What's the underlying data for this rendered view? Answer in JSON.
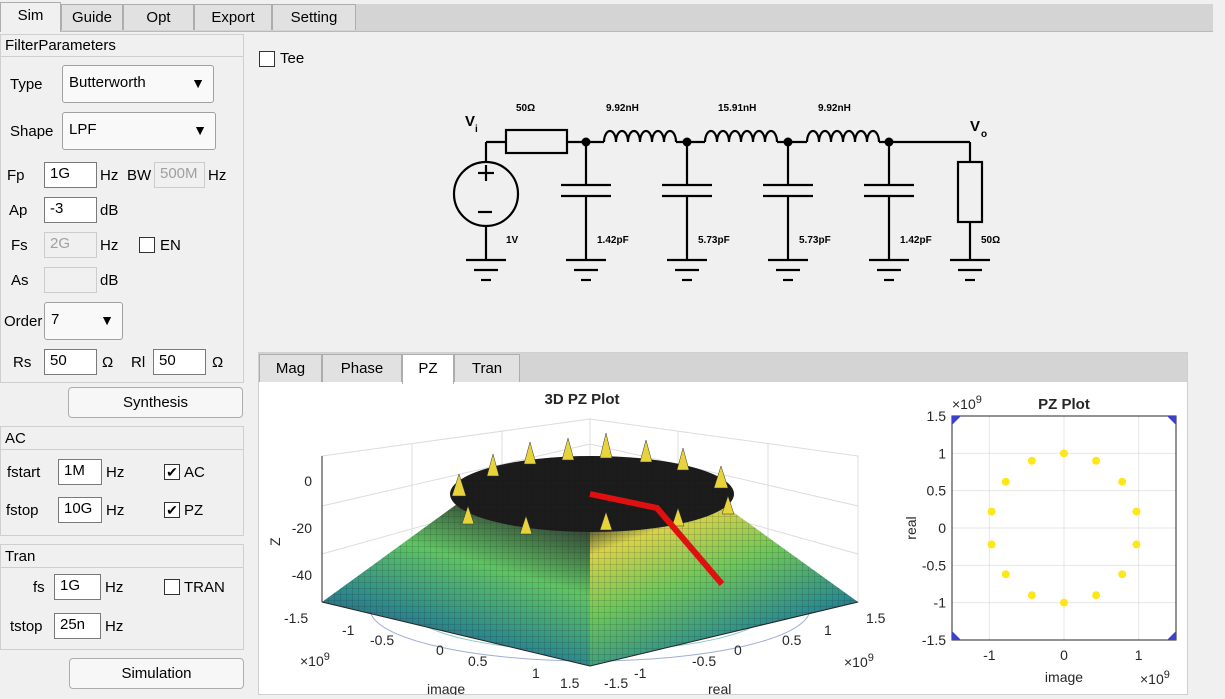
{
  "main_tabs": [
    "Sim",
    "Guide",
    "Opt",
    "Export",
    "Setting"
  ],
  "filter_params": {
    "title": "FilterParameters",
    "type_label": "Type",
    "type_value": "Butterworth",
    "shape_label": "Shape",
    "shape_value": "LPF",
    "fp_label": "Fp",
    "fp_value": "1G",
    "fp_unit": "Hz",
    "bw_label": "BW",
    "bw_value": "500M",
    "bw_unit": "Hz",
    "ap_label": "Ap",
    "ap_value": "-3",
    "ap_unit": "dB",
    "fs_label": "Fs",
    "fs_value": "2G",
    "fs_unit": "Hz",
    "en_label": "EN",
    "as_label": "As",
    "as_value": "",
    "as_unit": "dB",
    "order_label": "Order",
    "order_value": "7",
    "rs_label": "Rs",
    "rs_value": "50",
    "rs_unit": "Ω",
    "rl_label": "Rl",
    "rl_value": "50",
    "rl_unit": "Ω",
    "synthesis_label": "Synthesis"
  },
  "ac": {
    "title": "AC",
    "fstart_label": "fstart",
    "fstart_value": "1M",
    "fstart_unit": "Hz",
    "fstop_label": "fstop",
    "fstop_value": "10G",
    "fstop_unit": "Hz",
    "ac_check_label": "AC",
    "ac_checked": "✔",
    "pz_check_label": "PZ",
    "pz_checked": "✔"
  },
  "tran": {
    "title": "Tran",
    "fs_label": "fs",
    "fs_value": "1G",
    "fs_unit": "Hz",
    "tran_check_label": "TRAN",
    "tstop_label": "tstop",
    "tstop_value": "25n",
    "tstop_unit": "Hz",
    "simulation_label": "Simulation"
  },
  "tee_label": "Tee",
  "schematic": {
    "vi": "V",
    "vi_sub": "i",
    "vo": "V",
    "vo_sub": "o",
    "source": "1V",
    "rs": "50Ω",
    "rl": "50Ω",
    "inductors": [
      "9.92nH",
      "15.91nH",
      "9.92nH"
    ],
    "capacitors": [
      "1.42pF",
      "5.73pF",
      "5.73pF",
      "1.42pF"
    ]
  },
  "plot_tabs": [
    "Mag",
    "Phase",
    "PZ",
    "Tran"
  ],
  "plot3d": {
    "title": "3D PZ Plot",
    "zlabel": "Z",
    "xlabel": "image",
    "ylabel": "real",
    "z_ticks": [
      "0",
      "-20",
      "-40"
    ],
    "left_ticks": [
      "-1.5",
      "-1",
      "-0.5",
      "0",
      "0.5",
      "1",
      "1.5"
    ],
    "right_ticks": [
      "-1.5",
      "-1",
      "-0.5",
      "0",
      "0.5",
      "1",
      "1.5"
    ],
    "exp_left": "×10",
    "exp_right": "×10",
    "exp_power": "9"
  },
  "chart_data": {
    "type": "scatter",
    "title": "PZ Plot",
    "xlabel": "image",
    "ylabel": "real",
    "xlim": [
      -1.5,
      1.5
    ],
    "ylim": [
      -1.5,
      1.5
    ],
    "x_ticks": [
      "-1",
      "0",
      "1"
    ],
    "y_ticks": [
      "1.5",
      "1",
      "0.5",
      "0",
      "-0.5",
      "-1",
      "-1.5"
    ],
    "exp_label": "×10",
    "exp_power": "9",
    "grid": true,
    "poles": [
      {
        "x": 0.0,
        "y": 1.0
      },
      {
        "x": 0.43,
        "y": 0.9
      },
      {
        "x": 0.78,
        "y": 0.62
      },
      {
        "x": 0.97,
        "y": 0.22
      },
      {
        "x": 0.97,
        "y": -0.22
      },
      {
        "x": 0.78,
        "y": -0.62
      },
      {
        "x": 0.43,
        "y": -0.9
      },
      {
        "x": 0.0,
        "y": -1.0
      },
      {
        "x": -0.43,
        "y": -0.9
      },
      {
        "x": -0.78,
        "y": -0.62
      },
      {
        "x": -0.97,
        "y": -0.22
      },
      {
        "x": -0.97,
        "y": 0.22
      },
      {
        "x": -0.78,
        "y": 0.62
      },
      {
        "x": -0.43,
        "y": 0.9
      }
    ],
    "pole_color": "#ffe619",
    "corner_color": "#4040d0"
  }
}
